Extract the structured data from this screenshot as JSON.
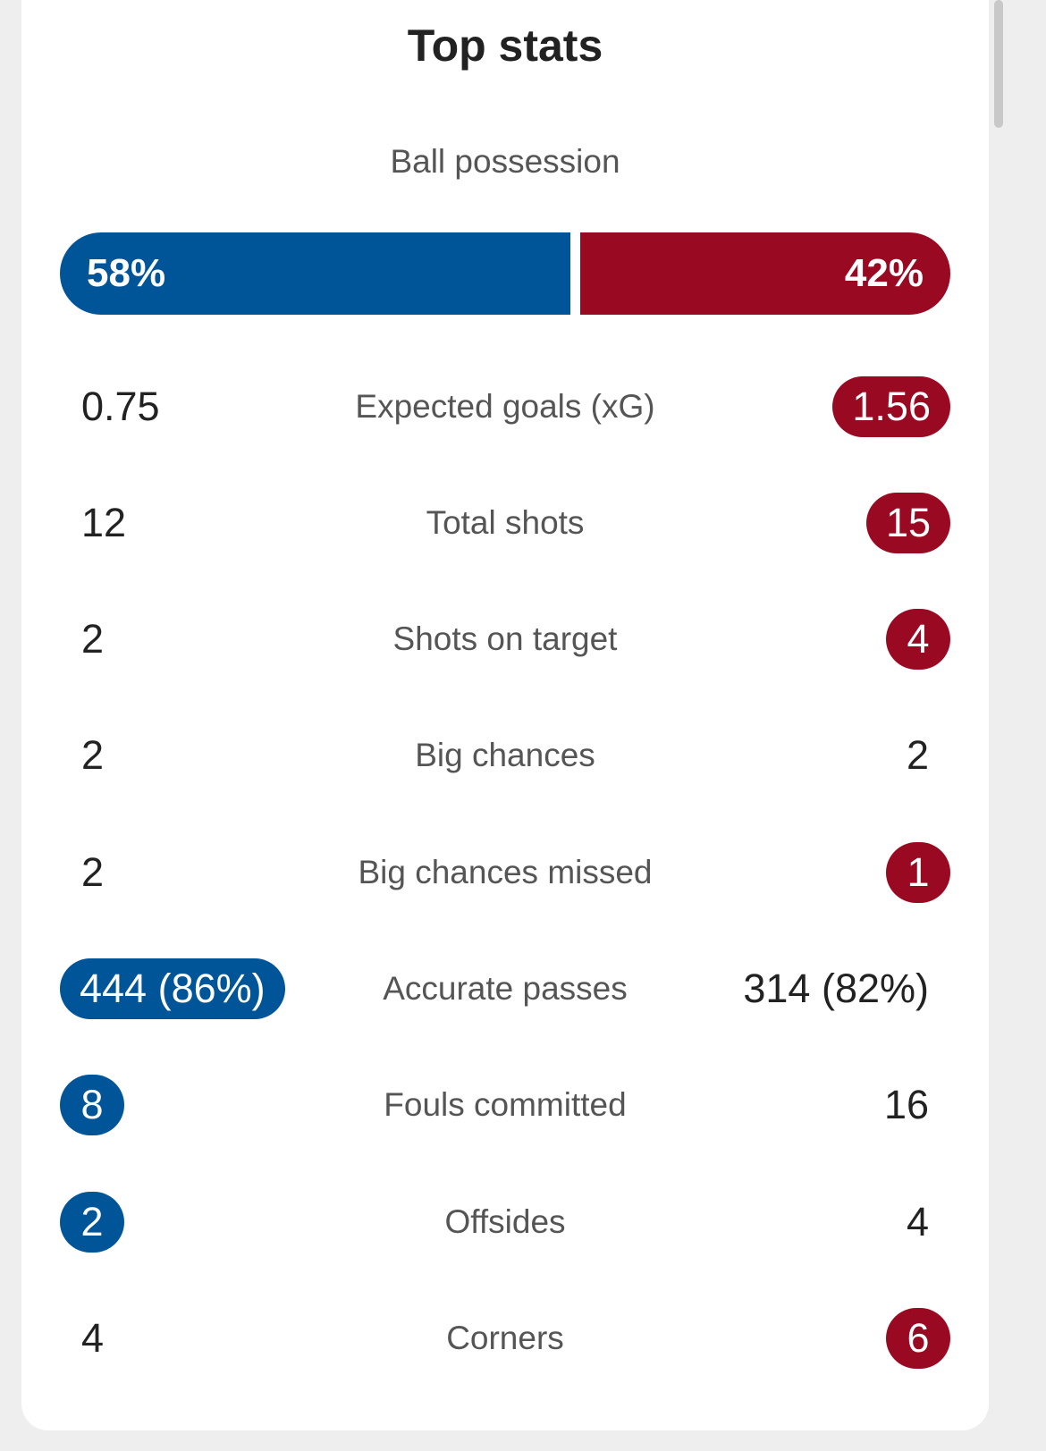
{
  "colors": {
    "home": "#005599",
    "away": "#990a22"
  },
  "title": "Top stats",
  "possession": {
    "label": "Ball possession",
    "home": "58%",
    "away": "42%",
    "home_fraction": 0.58
  },
  "stats": [
    {
      "label": "Expected goals (xG)",
      "home": "0.75",
      "away": "1.56",
      "highlight": "away"
    },
    {
      "label": "Total shots",
      "home": "12",
      "away": "15",
      "highlight": "away"
    },
    {
      "label": "Shots on target",
      "home": "2",
      "away": "4",
      "highlight": "away"
    },
    {
      "label": "Big chances",
      "home": "2",
      "away": "2",
      "highlight": "none"
    },
    {
      "label": "Big chances missed",
      "home": "2",
      "away": "1",
      "highlight": "away"
    },
    {
      "label": "Accurate passes",
      "home": "444 (86%)",
      "away": "314 (82%)",
      "highlight": "home"
    },
    {
      "label": "Fouls committed",
      "home": "8",
      "away": "16",
      "highlight": "home"
    },
    {
      "label": "Offsides",
      "home": "2",
      "away": "4",
      "highlight": "home"
    },
    {
      "label": "Corners",
      "home": "4",
      "away": "6",
      "highlight": "away"
    }
  ]
}
